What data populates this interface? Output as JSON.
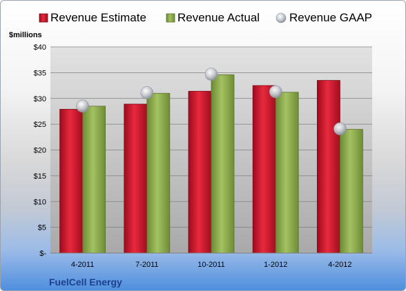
{
  "colors": {
    "estimate": "#c8102e",
    "actual": "#8aa84a",
    "gaap": "#b8bcc4"
  },
  "chart_data": {
    "type": "bar",
    "ylabel": "$millions",
    "company": "FuelCell Energy",
    "categories": [
      "4-2011",
      "7-2011",
      "10-2011",
      "1-2012",
      "4-2012"
    ],
    "y_ticks": [
      "$-",
      "$5",
      "$10",
      "$15",
      "$20",
      "$25",
      "$30",
      "$35",
      "$40"
    ],
    "ylim": [
      0,
      40
    ],
    "grid": true,
    "legend_position": "top",
    "series": [
      {
        "name": "Revenue Estimate",
        "kind": "bar",
        "values": [
          27.9,
          28.9,
          31.4,
          32.5,
          33.5
        ]
      },
      {
        "name": "Revenue Actual",
        "kind": "bar",
        "values": [
          28.5,
          31.0,
          34.6,
          31.2,
          24.0
        ]
      },
      {
        "name": "Revenue GAAP",
        "kind": "marker",
        "values": [
          28.5,
          31.1,
          34.7,
          31.3,
          24.1
        ]
      }
    ]
  }
}
